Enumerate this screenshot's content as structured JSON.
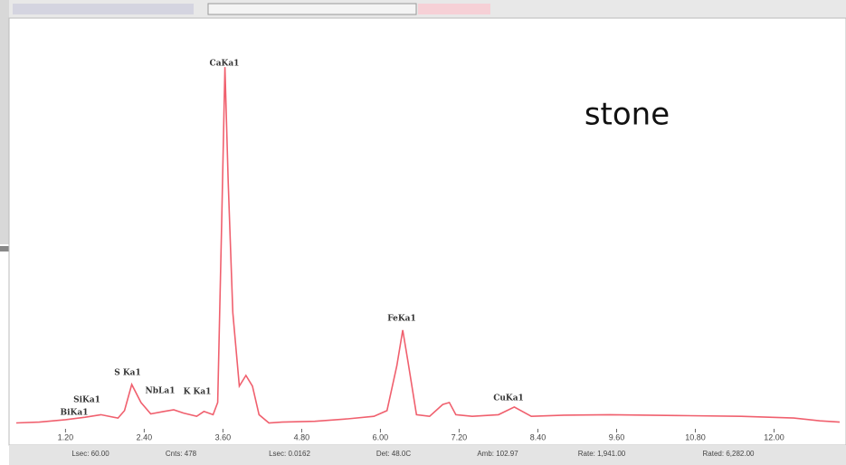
{
  "chart_data": {
    "type": "line",
    "x": [
      0.45,
      0.8,
      1.2,
      1.5,
      1.74,
      2.0,
      2.1,
      2.21,
      2.35,
      2.5,
      2.7,
      2.85,
      3.0,
      3.2,
      3.31,
      3.45,
      3.52,
      3.58,
      3.63,
      3.68,
      3.75,
      3.85,
      3.95,
      4.05,
      4.15,
      4.3,
      4.5,
      5.0,
      5.5,
      5.9,
      6.1,
      6.25,
      6.34,
      6.42,
      6.55,
      6.75,
      6.95,
      7.05,
      7.15,
      7.4,
      7.8,
      8.04,
      8.3,
      8.8,
      9.5,
      10.5,
      11.5,
      12.3,
      12.7,
      13.0
    ],
    "series": [
      {
        "color": "#f0606e",
        "values": [
          1.0,
          1.2,
          1.8,
          2.4,
          3.0,
          2.2,
          4.0,
          10.4,
          6,
          3.2,
          3.8,
          4.2,
          3.4,
          2.6,
          3.8,
          3.0,
          6,
          50,
          88,
          60,
          28,
          10,
          12.6,
          10,
          3,
          1.0,
          1.2,
          1.4,
          2.0,
          2.6,
          4,
          15,
          23.7,
          16,
          3,
          2.6,
          5.5,
          6,
          3,
          2.6,
          3.0,
          4.9,
          2.6,
          2.9,
          3.0,
          2.8,
          2.6,
          2.2,
          1.5,
          1.2
        ]
      }
    ],
    "xlim": [
      0.45,
      13.0
    ],
    "ylim": [
      0,
      100
    ],
    "xticks": [
      {
        "value": 1.2,
        "label": "1.20"
      },
      {
        "value": 2.4,
        "label": "2.40"
      },
      {
        "value": 3.6,
        "label": "3.60"
      },
      {
        "value": 4.8,
        "label": "4.80"
      },
      {
        "value": 6.0,
        "label": "6.00"
      },
      {
        "value": 7.2,
        "label": "7.20"
      },
      {
        "value": 8.4,
        "label": "8.40"
      },
      {
        "value": 9.6,
        "label": "9.60"
      },
      {
        "value": 10.8,
        "label": "10.80"
      },
      {
        "value": 12.0,
        "label": "12.00"
      }
    ],
    "annotations": [
      "CaKa1",
      "FeKa1",
      "S Ka1",
      "SiKa1",
      "BiKa1",
      "NbLa1",
      "K Ka1",
      "CuKa1"
    ],
    "title": "stone",
    "status": [
      "Lsec: 60.00",
      "Cnts: 478",
      "Lsec: 0.0162",
      "Det: 48.0C",
      "Amb: 102.97",
      "Rate: 1,941.00",
      "Rated: 6,282.00"
    ]
  }
}
